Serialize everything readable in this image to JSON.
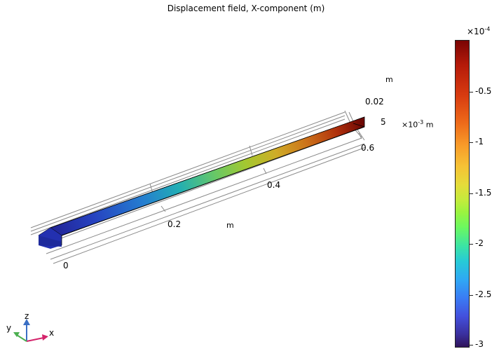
{
  "plot": {
    "title": "Displacement field, X-component (m)"
  },
  "axes": {
    "x_ticks": [
      "0",
      "0.2",
      "0.4",
      "0.6"
    ],
    "x_unit": "m",
    "y_tick": "0.02",
    "y_unit": "m",
    "z_tick": "5",
    "z_unit_prefix": "×10",
    "z_unit_exp": "-3",
    "z_unit": "m"
  },
  "colorbar": {
    "exponent_prefix": "×10",
    "exponent": "-4",
    "tick_labels": [
      "-0.5",
      "-1",
      "-1.5",
      "-2",
      "-2.5",
      "-3"
    ],
    "max_color": "#7a0403",
    "min_color": "#30135a"
  },
  "triad": {
    "x": "x",
    "y": "y",
    "z": "z",
    "x_color": "#d4246b",
    "y_color": "#4caf50",
    "z_color": "#3a6fc4"
  }
}
